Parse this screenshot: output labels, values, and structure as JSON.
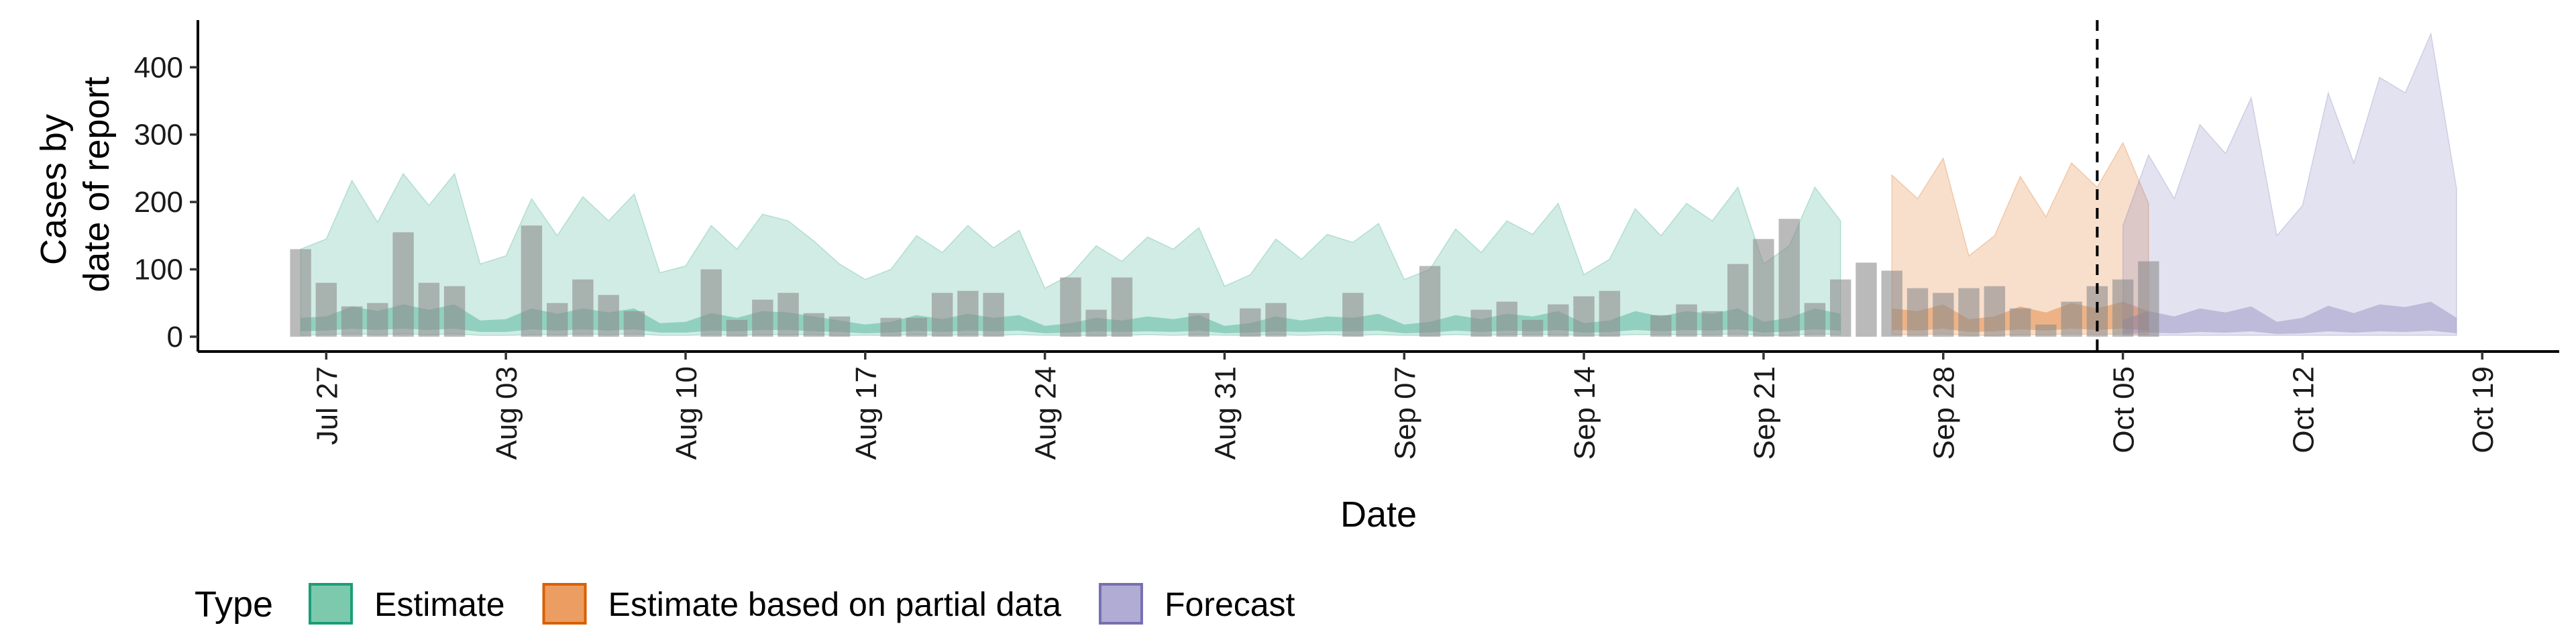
{
  "chart_data": {
    "type": "bar",
    "xlabel": "Date",
    "ylabel_lines": [
      "Cases by",
      "date of report"
    ],
    "ylim": [
      -22,
      470
    ],
    "y_ticks": [
      0,
      100,
      200,
      300,
      400
    ],
    "x_range": [
      "2020-07-22",
      "2020-10-22"
    ],
    "x_ticks": [
      {
        "date": "2020-07-27",
        "label": "Jul 27"
      },
      {
        "date": "2020-08-03",
        "label": "Aug 03"
      },
      {
        "date": "2020-08-10",
        "label": "Aug 10"
      },
      {
        "date": "2020-08-17",
        "label": "Aug 17"
      },
      {
        "date": "2020-08-24",
        "label": "Aug 24"
      },
      {
        "date": "2020-08-31",
        "label": "Aug 31"
      },
      {
        "date": "2020-09-07",
        "label": "Sep 07"
      },
      {
        "date": "2020-09-14",
        "label": "Sep 14"
      },
      {
        "date": "2020-09-21",
        "label": "Sep 21"
      },
      {
        "date": "2020-09-28",
        "label": "Sep 28"
      },
      {
        "date": "2020-10-05",
        "label": "Oct 05"
      },
      {
        "date": "2020-10-12",
        "label": "Oct 12"
      },
      {
        "date": "2020-10-19",
        "label": "Oct 19"
      }
    ],
    "forecast_date": "2020-10-04",
    "observed_cases": {
      "start_date": "2020-07-26",
      "values": [
        130,
        80,
        45,
        50,
        155,
        80,
        75,
        0,
        0,
        165,
        50,
        85,
        62,
        38,
        0,
        0,
        100,
        25,
        55,
        65,
        35,
        30,
        0,
        28,
        28,
        65,
        68,
        65,
        0,
        0,
        88,
        40,
        88,
        0,
        0,
        35,
        0,
        42,
        50,
        0,
        0,
        65,
        0,
        0,
        105,
        0,
        40,
        52,
        25,
        48,
        60,
        68,
        0,
        32,
        48,
        38,
        108,
        145,
        175,
        50,
        85,
        110,
        98,
        72,
        65,
        72,
        75,
        42,
        18,
        52,
        75,
        85,
        112
      ]
    },
    "legend": {
      "title": "Type",
      "items": [
        {
          "label": "Estimate",
          "fill": "#7dc9ae",
          "stroke": "#1b9e77"
        },
        {
          "label": "Estimate based on partial data",
          "fill": "#ec9e62",
          "stroke": "#d95f02"
        },
        {
          "label": "Forecast",
          "fill": "#b0acd3",
          "stroke": "#7570b3"
        }
      ],
      "position": "bottom"
    },
    "ribbons": [
      {
        "type": "Estimate",
        "color": "#1b9e77",
        "start_date": "2020-07-26",
        "upper_90": [
          130,
          145,
          232,
          170,
          242,
          195,
          242,
          108,
          120,
          205,
          150,
          208,
          172,
          212,
          95,
          105,
          165,
          130,
          182,
          172,
          142,
          108,
          85,
          100,
          150,
          125,
          165,
          132,
          158,
          72,
          92,
          135,
          112,
          148,
          130,
          162,
          75,
          92,
          145,
          115,
          152,
          140,
          168,
          85,
          100,
          160,
          125,
          172,
          152,
          198,
          92,
          115,
          190,
          150,
          198,
          172,
          222,
          108,
          135,
          222,
          172
        ],
        "lower_90": [
          2,
          3,
          4,
          3,
          4,
          3,
          4,
          2,
          2,
          3,
          3,
          4,
          3,
          4,
          2,
          2,
          3,
          2,
          3,
          3,
          3,
          2,
          2,
          2,
          3,
          2,
          3,
          2,
          3,
          2,
          2,
          2,
          2,
          3,
          2,
          3,
          2,
          2,
          3,
          2,
          3,
          2,
          3,
          2,
          2,
          3,
          2,
          3,
          3,
          3,
          2,
          2,
          3,
          3,
          3,
          3,
          4,
          2,
          2,
          4,
          3
        ],
        "upper_50": [
          28,
          30,
          45,
          38,
          48,
          40,
          48,
          24,
          26,
          42,
          34,
          42,
          36,
          42,
          20,
          22,
          35,
          28,
          38,
          36,
          30,
          24,
          18,
          22,
          32,
          26,
          34,
          28,
          32,
          16,
          20,
          28,
          24,
          30,
          26,
          32,
          16,
          20,
          30,
          24,
          30,
          28,
          34,
          18,
          22,
          32,
          26,
          34,
          30,
          38,
          20,
          24,
          38,
          30,
          38,
          34,
          42,
          22,
          28,
          42,
          34
        ],
        "lower_50": [
          8,
          9,
          12,
          10,
          12,
          10,
          12,
          7,
          7,
          11,
          9,
          11,
          9,
          11,
          6,
          6,
          9,
          8,
          10,
          10,
          8,
          7,
          5,
          6,
          9,
          7,
          9,
          8,
          9,
          5,
          6,
          8,
          7,
          8,
          7,
          9,
          5,
          6,
          8,
          7,
          8,
          8,
          9,
          5,
          6,
          9,
          7,
          9,
          8,
          10,
          6,
          7,
          10,
          8,
          10,
          9,
          11,
          6,
          8,
          11,
          9
        ]
      },
      {
        "type": "Estimate based on partial data",
        "color": "#d95f02",
        "start_date": "2020-09-26",
        "upper_90": [
          240,
          205,
          265,
          120,
          150,
          238,
          178,
          258,
          222,
          288,
          198
        ],
        "lower_90": [
          3,
          3,
          4,
          2,
          2,
          3,
          3,
          4,
          3,
          4,
          3
        ],
        "upper_50": [
          42,
          38,
          48,
          26,
          30,
          45,
          36,
          50,
          42,
          52,
          38
        ],
        "lower_50": [
          10,
          9,
          12,
          7,
          8,
          11,
          9,
          12,
          10,
          12,
          9
        ]
      },
      {
        "type": "Forecast",
        "color": "#7570b3",
        "start_date": "2020-10-05",
        "upper_90": [
          165,
          270,
          205,
          315,
          272,
          355,
          150,
          195,
          362,
          258,
          385,
          362,
          450,
          220
        ],
        "lower_90": [
          2,
          2,
          2,
          2,
          2,
          2,
          2,
          2,
          2,
          2,
          2,
          2,
          2,
          2
        ],
        "upper_50": [
          25,
          38,
          30,
          42,
          36,
          45,
          22,
          28,
          46,
          35,
          48,
          44,
          52,
          28
        ],
        "lower_50": [
          4,
          6,
          5,
          7,
          6,
          8,
          4,
          5,
          8,
          6,
          8,
          7,
          9,
          5
        ]
      }
    ]
  }
}
